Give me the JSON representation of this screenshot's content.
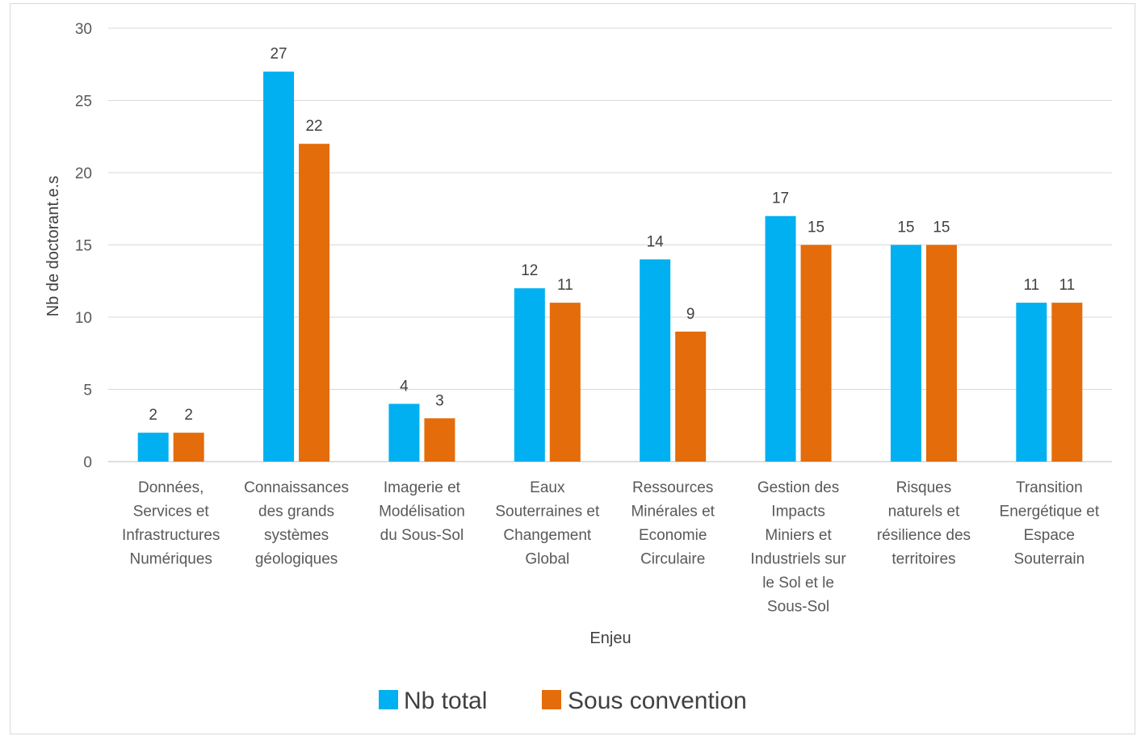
{
  "chart_data": {
    "type": "bar",
    "title": "",
    "xlabel": "Enjeu",
    "ylabel": "Nb de doctorant.e.s",
    "ylim": [
      0,
      30
    ],
    "ytick_step": 5,
    "grid": true,
    "legend_position": "bottom",
    "categories": [
      [
        "Données,",
        "Services et",
        "Infrastructures",
        "Numériques"
      ],
      [
        "Connaissances",
        "des grands",
        "systèmes",
        "géologiques"
      ],
      [
        "Imagerie et",
        "Modélisation",
        "du Sous-Sol"
      ],
      [
        "Eaux",
        "Souterraines et",
        "Changement",
        "Global"
      ],
      [
        "Ressources",
        "Minérales et",
        "Economie",
        "Circulaire"
      ],
      [
        "Gestion des",
        "Impacts",
        "Miniers et",
        "Industriels sur",
        "le Sol et le",
        "Sous-Sol"
      ],
      [
        "Risques",
        "naturels et",
        "résilience des",
        "territoires"
      ],
      [
        "Transition",
        "Energétique et",
        "Espace",
        "Souterrain"
      ]
    ],
    "series": [
      {
        "name": "Nb total",
        "color": "#00b0f0",
        "values": [
          2,
          27,
          4,
          12,
          14,
          17,
          15,
          11
        ]
      },
      {
        "name": "Sous convention",
        "color": "#e46c0a",
        "values": [
          2,
          22,
          3,
          11,
          9,
          15,
          15,
          11
        ]
      }
    ]
  }
}
